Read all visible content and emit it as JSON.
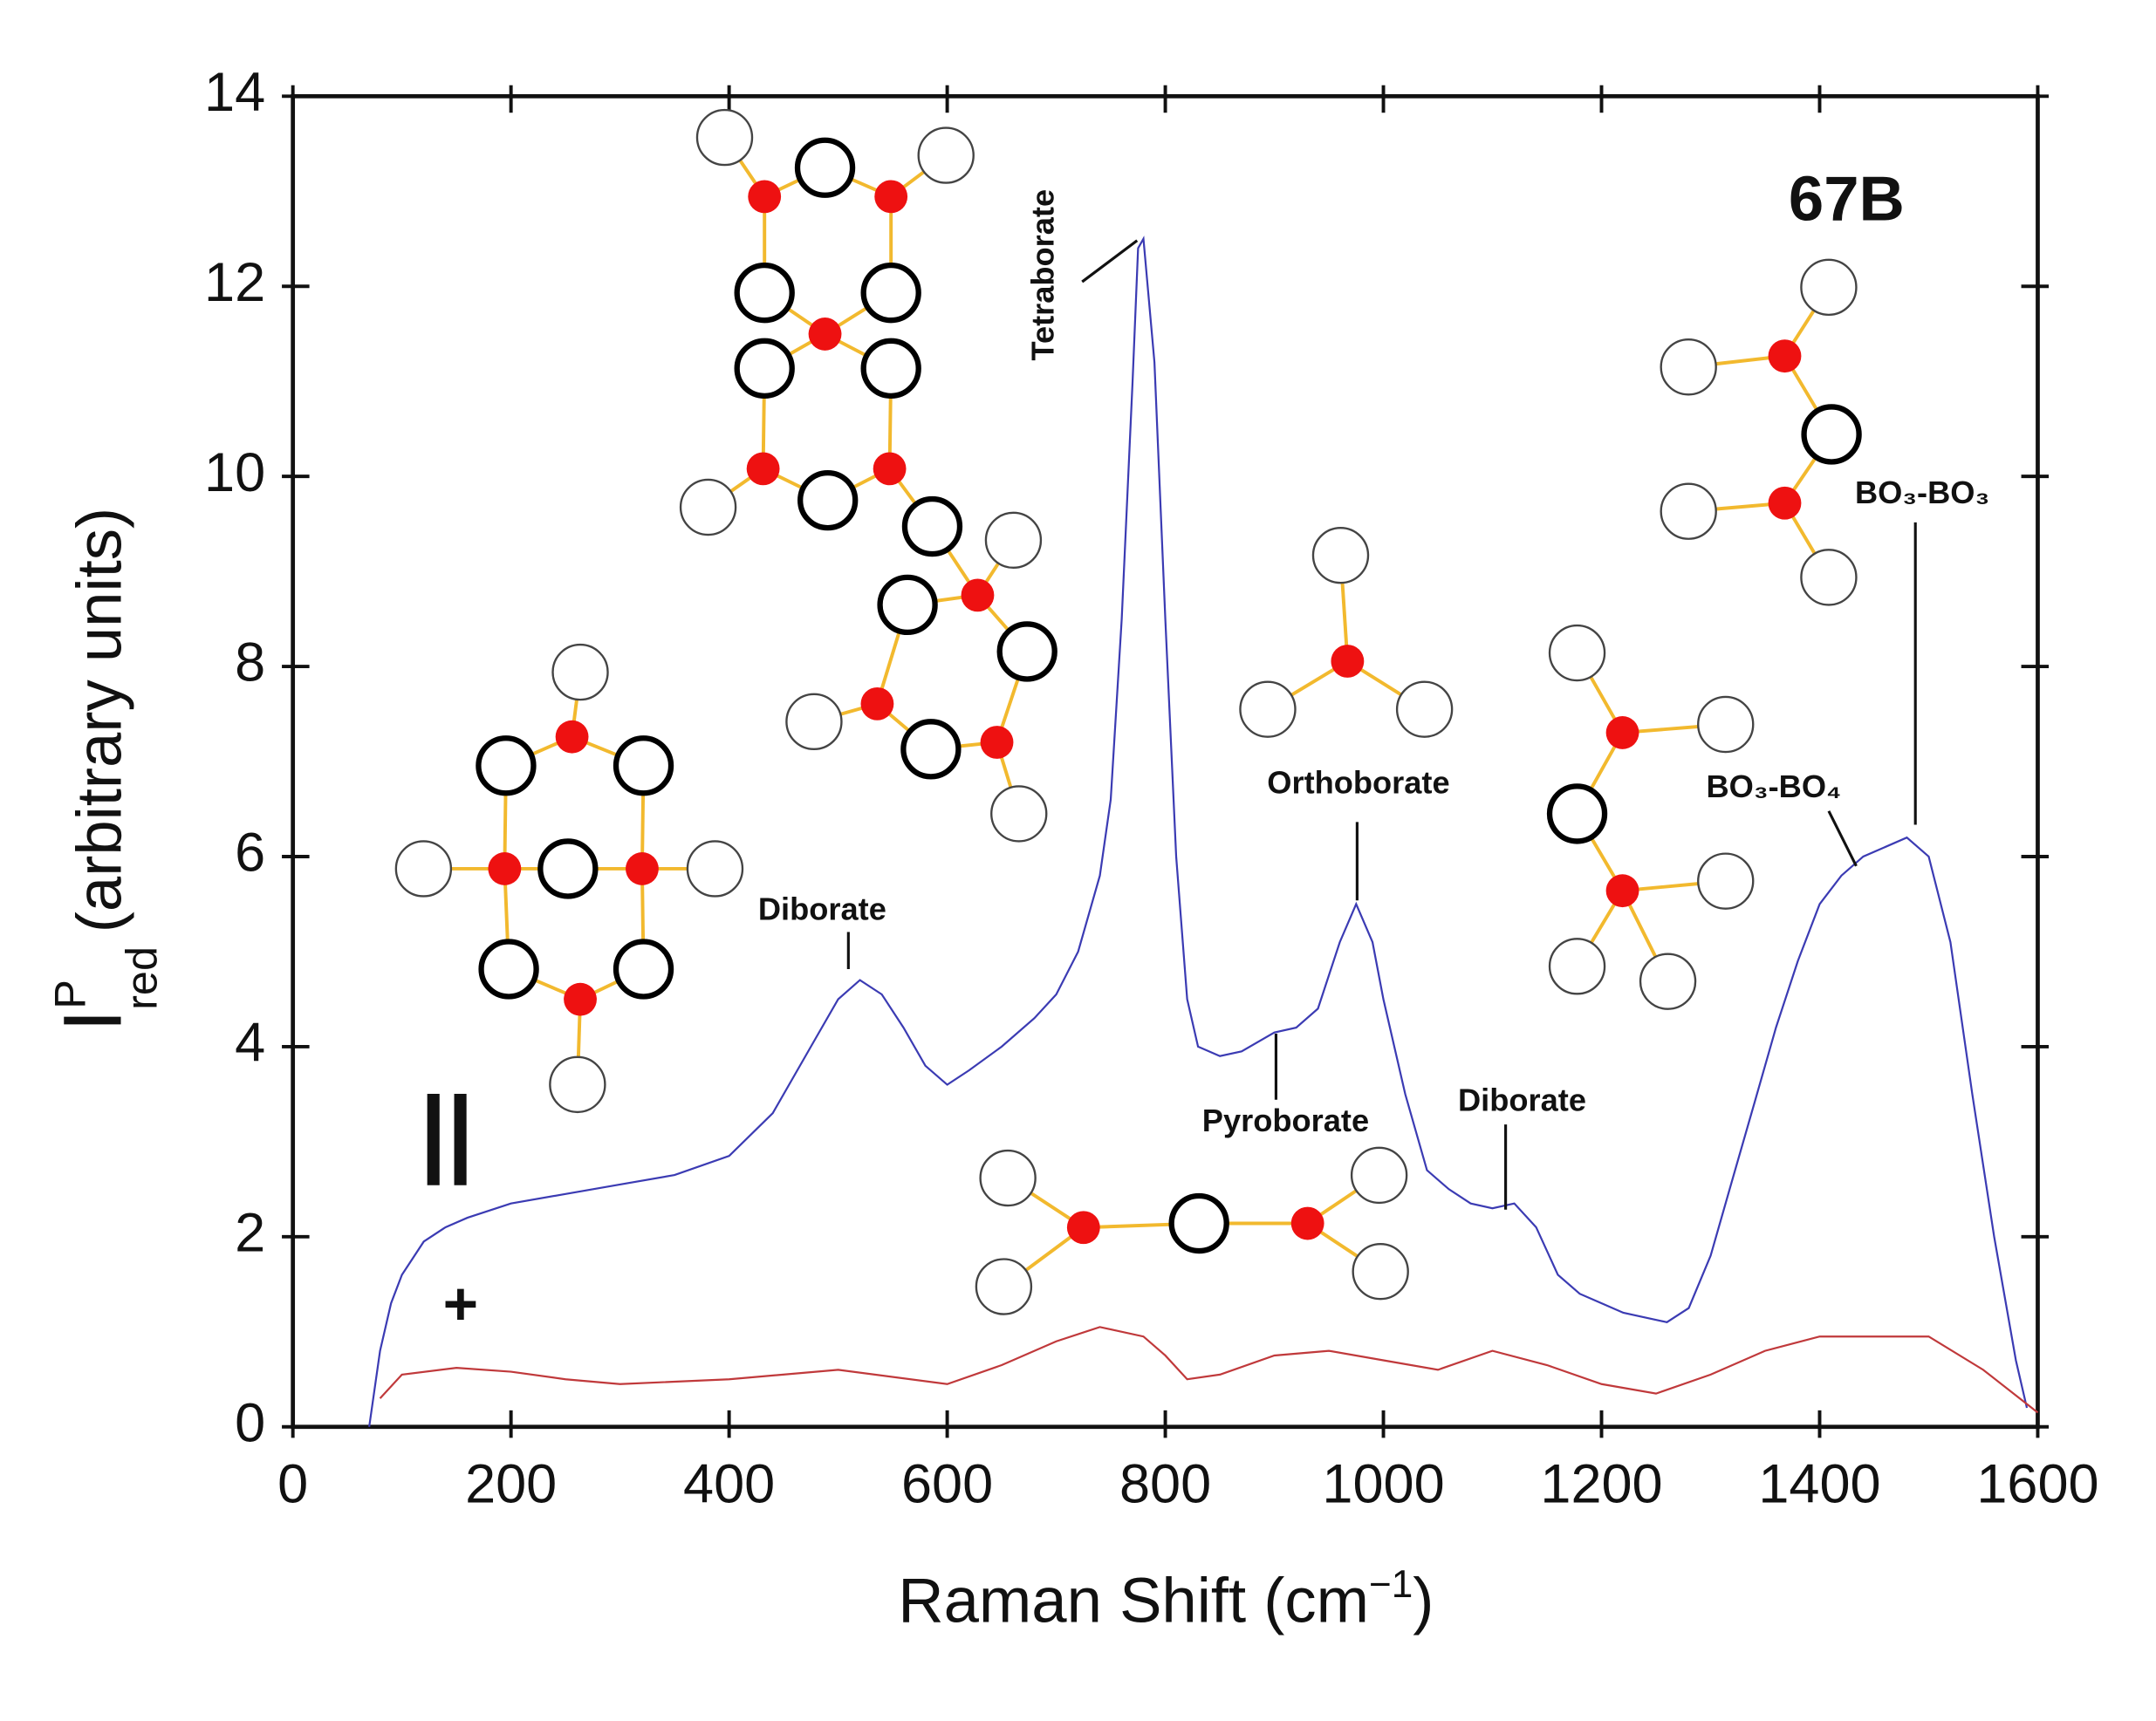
{
  "chart_data": {
    "type": "line",
    "title": "67B",
    "x_label": {
      "text": "Raman Shift (cm",
      "sup": "−1",
      "end": ")"
    },
    "y_label": {
      "main": "I",
      "sup": "P",
      "sub": "red",
      "rest": "(arbitrary units)"
    },
    "xlim": [
      0,
      1600
    ],
    "ylim": [
      0,
      14
    ],
    "xticks": [
      0,
      200,
      400,
      600,
      800,
      1000,
      1200,
      1400,
      1600
    ],
    "yticks": [
      0,
      2,
      4,
      6,
      8,
      10,
      12,
      14
    ],
    "series": [
      {
        "name": "||",
        "color": "#3b3bb3",
        "x": [
          70,
          80,
          90,
          100,
          120,
          140,
          160,
          200,
          250,
          300,
          350,
          400,
          440,
          480,
          500,
          520,
          540,
          560,
          580,
          600,
          620,
          650,
          680,
          700,
          720,
          740,
          750,
          760,
          770,
          775,
          780,
          790,
          800,
          810,
          820,
          830,
          850,
          870,
          900,
          920,
          940,
          960,
          975,
          990,
          1000,
          1020,
          1040,
          1060,
          1080,
          1100,
          1120,
          1140,
          1160,
          1180,
          1200,
          1220,
          1240,
          1260,
          1280,
          1300,
          1320,
          1340,
          1360,
          1380,
          1400,
          1420,
          1440,
          1460,
          1480,
          1500,
          1520,
          1540,
          1560,
          1580,
          1590
        ],
        "values": [
          0,
          0.8,
          1.3,
          1.6,
          1.95,
          2.1,
          2.2,
          2.35,
          2.45,
          2.55,
          2.65,
          2.85,
          3.3,
          4.1,
          4.5,
          4.7,
          4.55,
          4.2,
          3.8,
          3.6,
          3.75,
          4.0,
          4.3,
          4.55,
          5.0,
          5.8,
          6.6,
          8.5,
          11.0,
          12.4,
          12.5,
          11.2,
          8.5,
          6.0,
          4.5,
          4.0,
          3.9,
          3.95,
          4.15,
          4.2,
          4.4,
          5.1,
          5.5,
          5.1,
          4.5,
          3.5,
          2.7,
          2.5,
          2.35,
          2.3,
          2.35,
          2.1,
          1.6,
          1.4,
          1.3,
          1.2,
          1.15,
          1.1,
          1.25,
          1.8,
          2.6,
          3.4,
          4.2,
          4.9,
          5.5,
          5.8,
          6.0,
          6.1,
          6.2,
          6.0,
          5.1,
          3.5,
          2.0,
          0.7,
          0.2
        ]
      },
      {
        "name": "+",
        "color": "#c0393b",
        "x": [
          80,
          100,
          150,
          200,
          250,
          300,
          400,
          500,
          600,
          650,
          700,
          740,
          780,
          800,
          820,
          850,
          900,
          950,
          1000,
          1050,
          1100,
          1150,
          1200,
          1250,
          1300,
          1350,
          1400,
          1450,
          1500,
          1550,
          1600
        ],
        "values": [
          0.3,
          0.55,
          0.62,
          0.58,
          0.5,
          0.45,
          0.5,
          0.6,
          0.45,
          0.65,
          0.9,
          1.05,
          0.95,
          0.75,
          0.5,
          0.55,
          0.75,
          0.8,
          0.7,
          0.6,
          0.8,
          0.65,
          0.45,
          0.35,
          0.55,
          0.8,
          0.95,
          0.95,
          0.95,
          0.6,
          0.15
        ]
      }
    ],
    "annotations": [
      "Tetraborate",
      "Diborate",
      "Orthoborate",
      "Pyroborate",
      "Diborate",
      "BO₃-BO₄",
      "BO₃-BO₃"
    ]
  }
}
